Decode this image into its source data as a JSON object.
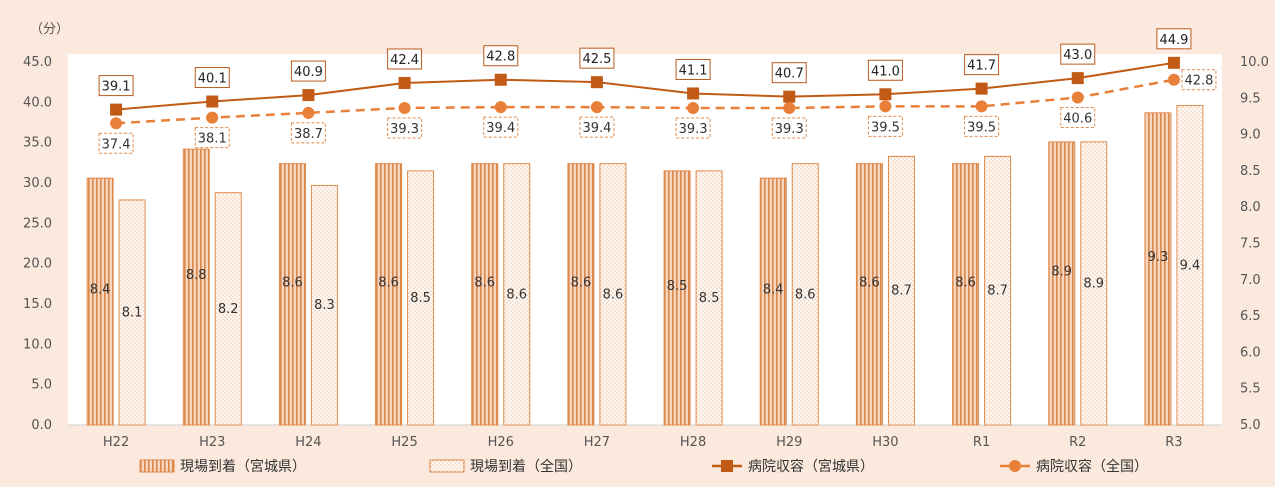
{
  "chart_data": {
    "type": "bar+line",
    "y_unit_label": "（分）",
    "categories": [
      "H22",
      "H23",
      "H24",
      "H25",
      "H26",
      "H27",
      "H28",
      "H29",
      "H30",
      "R1",
      "R2",
      "R3"
    ],
    "bars": [
      {
        "name": "現場到着（宮城県）",
        "axis": "right",
        "values": [
          8.4,
          8.8,
          8.6,
          8.6,
          8.6,
          8.6,
          8.5,
          8.4,
          8.6,
          8.6,
          8.9,
          9.3
        ]
      },
      {
        "name": "現場到着（全国）",
        "axis": "right",
        "values": [
          8.1,
          8.2,
          8.3,
          8.5,
          8.6,
          8.6,
          8.5,
          8.6,
          8.7,
          8.7,
          8.9,
          9.4
        ]
      }
    ],
    "lines": [
      {
        "name": "病院収容（宮城県）",
        "axis": "left",
        "marker": "square",
        "style": "solid",
        "color": "#c05a14",
        "values": [
          39.1,
          40.1,
          40.9,
          42.4,
          42.8,
          42.5,
          41.1,
          40.7,
          41.0,
          41.7,
          43.0,
          44.9
        ]
      },
      {
        "name": "病院収容（全国）",
        "axis": "left",
        "marker": "circle",
        "style": "dashed",
        "color": "#e8803a",
        "values": [
          37.4,
          38.1,
          38.7,
          39.3,
          39.4,
          39.4,
          39.3,
          39.3,
          39.5,
          39.5,
          40.6,
          42.8
        ]
      }
    ],
    "y_left": {
      "min": 0,
      "max": 45,
      "ticks": [
        "0.0",
        "5.0",
        "10.0",
        "15.0",
        "20.0",
        "25.0",
        "30.0",
        "35.0",
        "40.0",
        "45.0"
      ]
    },
    "y_right": {
      "min": 5,
      "max": 10,
      "ticks": [
        "5.0",
        "5.5",
        "6.0",
        "6.5",
        "7.0",
        "7.5",
        "8.0",
        "8.5",
        "9.0",
        "9.5",
        "10.0"
      ]
    },
    "legend_position": "bottom",
    "grid": false,
    "colors": {
      "background": "#fbe9dd",
      "plot_bg": "#ffffff",
      "bar_outline": "#e08a4a",
      "axis_text": "#555555"
    }
  }
}
